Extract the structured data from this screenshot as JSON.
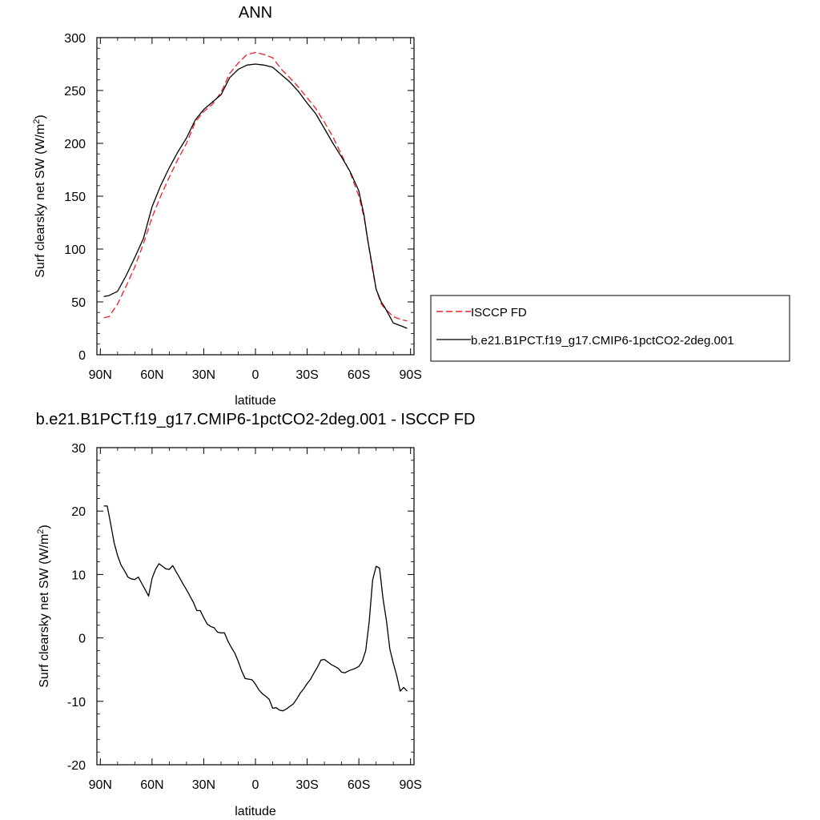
{
  "chart_data": [
    {
      "type": "line",
      "title": "ANN",
      "xlabel": "latitude",
      "ylabel": "Surf clearsky net SW (W/m2)",
      "ylabel_main": "Surf clearsky net SW (W/m",
      "ylabel_sup": "2",
      "ylabel_close": ")",
      "ylim": [
        0,
        300
      ],
      "yticks": [
        "0",
        "50",
        "100",
        "150",
        "200",
        "250",
        "300"
      ],
      "xlim": [
        -92,
        92
      ],
      "xticks": [
        {
          "x": -90,
          "label": "90N"
        },
        {
          "x": -60,
          "label": "60N"
        },
        {
          "x": -30,
          "label": "30N"
        },
        {
          "x": 0,
          "label": "0"
        },
        {
          "x": 30,
          "label": "30S"
        },
        {
          "x": 60,
          "label": "60S"
        },
        {
          "x": 90,
          "label": "90S"
        }
      ],
      "legend": "right",
      "series": [
        {
          "name": "ISCCP FD",
          "color": "#e8212b",
          "dash": true,
          "x": [
            -88,
            -85,
            -80,
            -75,
            -70,
            -65,
            -60,
            -55,
            -50,
            -45,
            -40,
            -35,
            -30,
            -25,
            -20,
            -15,
            -10,
            -5,
            0,
            5,
            10,
            15,
            20,
            25,
            30,
            35,
            40,
            45,
            50,
            55,
            60,
            63,
            65,
            68,
            70,
            73,
            75,
            80,
            85,
            88
          ],
          "y": [
            35,
            36,
            48,
            65,
            83,
            105,
            130,
            150,
            168,
            185,
            200,
            220,
            230,
            237,
            248,
            266,
            276,
            284,
            286,
            284,
            281,
            270,
            262,
            253,
            243,
            233,
            220,
            206,
            189,
            172,
            150,
            130,
            110,
            80,
            62,
            48,
            44,
            36,
            33,
            32
          ]
        },
        {
          "name": "b.e21.B1PCT.f19_g17.CMIP6-1pctCO2-2deg.001",
          "color": "#000000",
          "dash": false,
          "x": [
            -88,
            -85,
            -80,
            -75,
            -70,
            -65,
            -60,
            -55,
            -50,
            -45,
            -40,
            -35,
            -30,
            -25,
            -20,
            -15,
            -10,
            -5,
            0,
            5,
            10,
            15,
            20,
            25,
            30,
            35,
            40,
            45,
            50,
            55,
            60,
            63,
            65,
            68,
            70,
            73,
            75,
            80,
            85,
            88
          ],
          "y": [
            55,
            56,
            60,
            75,
            92,
            110,
            140,
            160,
            177,
            192,
            205,
            222,
            232,
            239,
            246,
            262,
            270,
            274,
            275,
            274,
            272,
            265,
            258,
            249,
            238,
            228,
            214,
            200,
            187,
            173,
            155,
            132,
            110,
            82,
            62,
            50,
            45,
            30,
            27,
            25
          ]
        }
      ]
    },
    {
      "type": "line",
      "title": "b.e21.B1PCT.f19_g17.CMIP6-1pctCO2-2deg.001 - ISCCP FD",
      "xlabel": "latitude",
      "ylabel": "Surf clearsky net SW (W/m2)",
      "ylabel_main": "Surf clearsky net SW (W/m",
      "ylabel_sup": "2",
      "ylabel_close": ")",
      "ylim": [
        -20,
        30
      ],
      "yticks": [
        "-20",
        "-10",
        "0",
        "10",
        "20",
        "30"
      ],
      "xlim": [
        -92,
        92
      ],
      "xticks": [
        {
          "x": -90,
          "label": "90N"
        },
        {
          "x": -60,
          "label": "60N"
        },
        {
          "x": -30,
          "label": "30N"
        },
        {
          "x": 0,
          "label": "0"
        },
        {
          "x": 30,
          "label": "30S"
        },
        {
          "x": 60,
          "label": "60S"
        },
        {
          "x": 90,
          "label": "90S"
        }
      ],
      "series": [
        {
          "color": "#000000",
          "dash": false,
          "x": [
            -88,
            -86,
            -84,
            -82,
            -80,
            -78,
            -76,
            -74,
            -72,
            -70,
            -68,
            -66,
            -64,
            -62,
            -60,
            -58,
            -56,
            -54,
            -52,
            -50,
            -48,
            -46,
            -44,
            -42,
            -40,
            -38,
            -36,
            -34,
            -32,
            -30,
            -28,
            -26,
            -24,
            -22,
            -20,
            -18,
            -16,
            -14,
            -12,
            -10,
            -8,
            -6,
            -4,
            -2,
            0,
            2,
            4,
            6,
            8,
            10,
            12,
            14,
            16,
            18,
            20,
            22,
            24,
            26,
            28,
            30,
            32,
            34,
            36,
            38,
            40,
            42,
            44,
            46,
            48,
            50,
            52,
            54,
            56,
            58,
            60,
            62,
            64,
            66,
            68,
            70,
            72,
            74,
            76,
            78,
            80,
            82,
            84,
            86,
            88
          ],
          "y": [
            20.8,
            20.8,
            18,
            15,
            13,
            11.5,
            10.6,
            9.6,
            9.3,
            9.2,
            9.6,
            8.6,
            7.6,
            6.6,
            9.4,
            10.8,
            11.7,
            11.3,
            10.9,
            10.8,
            11.4,
            10.4,
            9.5,
            8.5,
            7.6,
            6.6,
            5.6,
            4.3,
            4.3,
            3.2,
            2.2,
            1.8,
            1.6,
            0.9,
            0.8,
            0.8,
            -0.5,
            -1.5,
            -2.4,
            -3.7,
            -5.2,
            -6.4,
            -6.5,
            -6.6,
            -7.3,
            -8.2,
            -8.8,
            -9.2,
            -9.7,
            -11.1,
            -11,
            -11.4,
            -11.5,
            -11.2,
            -10.8,
            -10.4,
            -9.6,
            -8.7,
            -8,
            -7.2,
            -6.5,
            -5.5,
            -4.6,
            -3.5,
            -3.4,
            -3.8,
            -4.2,
            -4.5,
            -4.8,
            -5.4,
            -5.5,
            -5.2,
            -5,
            -4.8,
            -4.5,
            -3.7,
            -2,
            2.5,
            9.1,
            11.3,
            11,
            6.2,
            2.7,
            -1.8,
            -4,
            -6,
            -8.4,
            -7.8,
            -8.4
          ]
        }
      ]
    }
  ]
}
